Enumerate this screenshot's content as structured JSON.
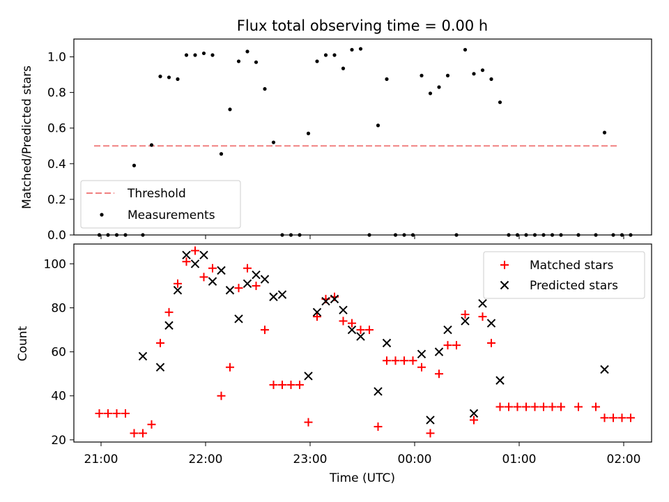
{
  "title": "Flux total observing time = 0.00 h",
  "chart_data": [
    {
      "type": "scatter",
      "ylabel": "Matched/Predicted stars",
      "ylim": [
        0,
        1.1
      ],
      "yticks": [
        "0.0",
        "0.2",
        "0.4",
        "0.6",
        "0.8",
        "1.0"
      ],
      "yticks_values": [
        0,
        0.2,
        0.4,
        0.6,
        0.8,
        1.0
      ],
      "legend": {
        "position": "lower-left",
        "entries": [
          "Threshold",
          "Measurements"
        ]
      },
      "threshold": {
        "name": "Threshold",
        "value": 0.5,
        "x_start": "20:56",
        "x_end": "01:56",
        "color": "#f08080"
      },
      "series": [
        {
          "name": "Measurements",
          "color": "#000000",
          "points": [
            [
              "20:59",
              0
            ],
            [
              "21:04",
              0
            ],
            [
              "21:09",
              0
            ],
            [
              "21:14",
              0
            ],
            [
              "21:19",
              0.39
            ],
            [
              "21:24",
              0
            ],
            [
              "21:29",
              0.505
            ],
            [
              "21:34",
              0.89
            ],
            [
              "21:39",
              0.885
            ],
            [
              "21:44",
              0.875
            ],
            [
              "21:49",
              1.01
            ],
            [
              "21:54",
              1.01
            ],
            [
              "21:59",
              1.02
            ],
            [
              "22:04",
              1.01
            ],
            [
              "22:09",
              0.455
            ],
            [
              "22:14",
              0.705
            ],
            [
              "22:19",
              0.975
            ],
            [
              "22:24",
              1.03
            ],
            [
              "22:29",
              0.97
            ],
            [
              "22:34",
              0.82
            ],
            [
              "22:39",
              0.52
            ],
            [
              "22:44",
              0
            ],
            [
              "22:49",
              0
            ],
            [
              "22:54",
              0
            ],
            [
              "22:59",
              0.57
            ],
            [
              "23:04",
              0.975
            ],
            [
              "23:09",
              1.01
            ],
            [
              "23:14",
              1.01
            ],
            [
              "23:19",
              0.935
            ],
            [
              "23:24",
              1.04
            ],
            [
              "23:29",
              1.045
            ],
            [
              "23:34",
              0
            ],
            [
              "23:39",
              0.615
            ],
            [
              "23:44",
              0.875
            ],
            [
              "23:49",
              0
            ],
            [
              "23:54",
              0
            ],
            [
              "23:59",
              0
            ],
            [
              "00:04",
              0.895
            ],
            [
              "00:09",
              0.795
            ],
            [
              "00:14",
              0.83
            ],
            [
              "00:19",
              0.895
            ],
            [
              "00:24",
              0
            ],
            [
              "00:29",
              1.04
            ],
            [
              "00:34",
              0.905
            ],
            [
              "00:39",
              0.925
            ],
            [
              "00:44",
              0.875
            ],
            [
              "00:49",
              0.745
            ],
            [
              "00:54",
              0
            ],
            [
              "00:59",
              0
            ],
            [
              "01:04",
              0
            ],
            [
              "01:09",
              0
            ],
            [
              "01:14",
              0
            ],
            [
              "01:19",
              0
            ],
            [
              "01:24",
              0
            ],
            [
              "01:34",
              0
            ],
            [
              "01:44",
              0
            ],
            [
              "01:49",
              0.575
            ],
            [
              "01:54",
              0
            ],
            [
              "01:59",
              0
            ],
            [
              "02:04",
              0
            ]
          ]
        }
      ]
    },
    {
      "type": "scatter",
      "xlabel": "Time (UTC)",
      "ylabel": "Count",
      "ylim": [
        19,
        109
      ],
      "yticks": [
        "20",
        "40",
        "60",
        "80",
        "100"
      ],
      "yticks_values": [
        20,
        40,
        60,
        80,
        100
      ],
      "xticks": [
        "21:00",
        "22:00",
        "23:00",
        "00:00",
        "01:00",
        "02:00"
      ],
      "legend": {
        "position": "upper-right",
        "entries": [
          "Matched stars",
          "Predicted stars"
        ]
      },
      "series": [
        {
          "name": "Matched stars",
          "marker": "+",
          "color": "#ff0000",
          "points": [
            [
              "20:59",
              32
            ],
            [
              "21:04",
              32
            ],
            [
              "21:09",
              32
            ],
            [
              "21:14",
              32
            ],
            [
              "21:19",
              23
            ],
            [
              "21:24",
              23
            ],
            [
              "21:29",
              27
            ],
            [
              "21:34",
              64
            ],
            [
              "21:39",
              78
            ],
            [
              "21:44",
              91
            ],
            [
              "21:49",
              101
            ],
            [
              "21:54",
              106
            ],
            [
              "21:59",
              94
            ],
            [
              "22:04",
              98
            ],
            [
              "22:09",
              40
            ],
            [
              "22:14",
              53
            ],
            [
              "22:19",
              89
            ],
            [
              "22:24",
              98
            ],
            [
              "22:29",
              90
            ],
            [
              "22:34",
              70
            ],
            [
              "22:39",
              45
            ],
            [
              "22:44",
              45
            ],
            [
              "22:49",
              45
            ],
            [
              "22:54",
              45
            ],
            [
              "22:59",
              28
            ],
            [
              "23:04",
              76
            ],
            [
              "23:09",
              84
            ],
            [
              "23:14",
              85
            ],
            [
              "23:19",
              74
            ],
            [
              "23:24",
              73
            ],
            [
              "23:29",
              70
            ],
            [
              "23:34",
              70
            ],
            [
              "23:39",
              26
            ],
            [
              "23:44",
              56
            ],
            [
              "23:49",
              56
            ],
            [
              "23:54",
              56
            ],
            [
              "23:59",
              56
            ],
            [
              "00:04",
              53
            ],
            [
              "00:09",
              23
            ],
            [
              "00:14",
              50
            ],
            [
              "00:19",
              63
            ],
            [
              "00:24",
              63
            ],
            [
              "00:29",
              77
            ],
            [
              "00:34",
              29
            ],
            [
              "00:39",
              76
            ],
            [
              "00:44",
              64
            ],
            [
              "00:49",
              35
            ],
            [
              "00:54",
              35
            ],
            [
              "00:59",
              35
            ],
            [
              "01:04",
              35
            ],
            [
              "01:09",
              35
            ],
            [
              "01:14",
              35
            ],
            [
              "01:19",
              35
            ],
            [
              "01:24",
              35
            ],
            [
              "01:34",
              35
            ],
            [
              "01:44",
              35
            ],
            [
              "01:49",
              30
            ],
            [
              "01:54",
              30
            ],
            [
              "01:59",
              30
            ],
            [
              "02:04",
              30
            ]
          ]
        },
        {
          "name": "Predicted stars",
          "marker": "x",
          "color": "#000000",
          "points": [
            [
              "21:24",
              58
            ],
            [
              "21:34",
              53
            ],
            [
              "21:39",
              72
            ],
            [
              "21:44",
              88
            ],
            [
              "21:49",
              104
            ],
            [
              "21:54",
              100
            ],
            [
              "21:59",
              104
            ],
            [
              "22:04",
              92
            ],
            [
              "22:09",
              97
            ],
            [
              "22:14",
              88
            ],
            [
              "22:19",
              75
            ],
            [
              "22:24",
              91
            ],
            [
              "22:29",
              95
            ],
            [
              "22:34",
              93
            ],
            [
              "22:39",
              85
            ],
            [
              "22:44",
              86
            ],
            [
              "22:59",
              49
            ],
            [
              "23:04",
              78
            ],
            [
              "23:09",
              83
            ],
            [
              "23:14",
              84
            ],
            [
              "23:19",
              79
            ],
            [
              "23:24",
              70
            ],
            [
              "23:29",
              67
            ],
            [
              "23:39",
              42
            ],
            [
              "23:44",
              64
            ],
            [
              "00:04",
              59
            ],
            [
              "00:09",
              29
            ],
            [
              "00:14",
              60
            ],
            [
              "00:19",
              70
            ],
            [
              "00:29",
              74
            ],
            [
              "00:34",
              32
            ],
            [
              "00:39",
              82
            ],
            [
              "00:44",
              73
            ],
            [
              "00:49",
              47
            ],
            [
              "01:49",
              52
            ]
          ]
        }
      ]
    }
  ]
}
